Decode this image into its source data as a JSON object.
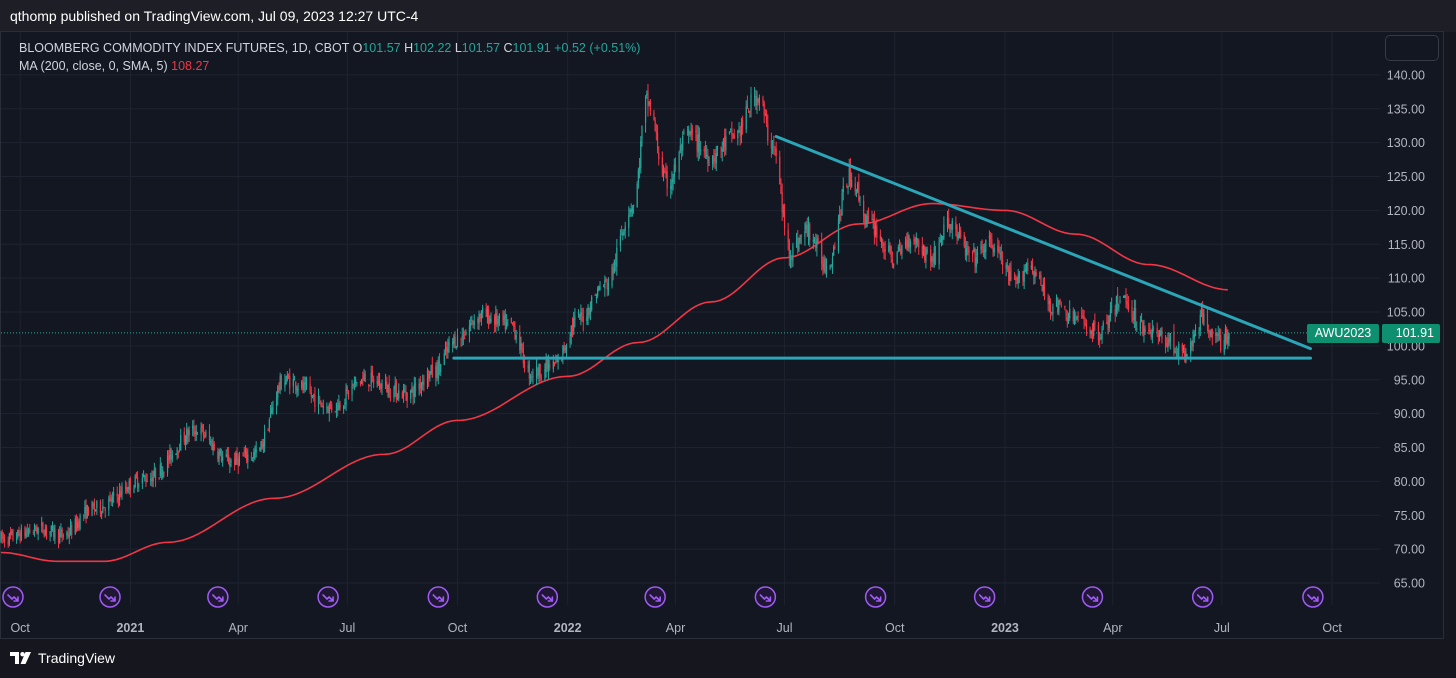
{
  "header": {
    "publisher_line": "qthomp published on TradingView.com, Jul 09, 2023 12:27 UTC-4"
  },
  "legend": {
    "symbol": "BLOOMBERG COMMODITY INDEX FUTURES, 1D, CBOT",
    "o_label": "O",
    "o_value": "101.57",
    "h_label": "H",
    "h_value": "102.22",
    "l_label": "L",
    "l_value": "101.57",
    "c_label": "C",
    "c_value": "101.91",
    "change": "+0.52 (+0.51%)",
    "ma_label": "MA (200, close, 0, SMA, 5)",
    "ma_value": "108.27"
  },
  "price_tag": {
    "symbol": "AWU2023",
    "price": "101.91"
  },
  "footer": {
    "brand": "TradingView"
  },
  "colors": {
    "up": "#26a69a",
    "down": "#f23645",
    "ma": "#f23645",
    "trendline": "#2aa6b8",
    "event_icon": "#a05bf5"
  },
  "icons": [
    "tradingview-logo-icon",
    "event-flag-icon"
  ],
  "chart_data": {
    "type": "candlestick",
    "title": "",
    "y_axis": {
      "ticks": [
        65,
        70,
        75,
        80,
        85,
        90,
        95,
        100,
        105,
        110,
        115,
        120,
        125,
        130,
        135,
        140
      ],
      "labels": [
        "65.00",
        "70.00",
        "75.00",
        "80.00",
        "85.00",
        "90.00",
        "95.00",
        "100.00",
        "105.00",
        "110.00",
        "115.00",
        "120.00",
        "125.00",
        "130.00",
        "135.00",
        "140.00"
      ],
      "side": "right"
    },
    "x_axis": {
      "start_date": "2020-09-15",
      "end_date": "2023-11-10",
      "ticks": [
        {
          "date": "2020-10-01",
          "label": "Oct",
          "bold": false
        },
        {
          "date": "2021-01-01",
          "label": "2021",
          "bold": true
        },
        {
          "date": "2021-04-01",
          "label": "Apr",
          "bold": false
        },
        {
          "date": "2021-07-01",
          "label": "Jul",
          "bold": false
        },
        {
          "date": "2021-10-01",
          "label": "Oct",
          "bold": false
        },
        {
          "date": "2022-01-01",
          "label": "2022",
          "bold": true
        },
        {
          "date": "2022-04-01",
          "label": "Apr",
          "bold": false
        },
        {
          "date": "2022-07-01",
          "label": "Jul",
          "bold": false
        },
        {
          "date": "2022-10-01",
          "label": "Oct",
          "bold": false
        },
        {
          "date": "2023-01-01",
          "label": "2023",
          "bold": true
        },
        {
          "date": "2023-04-01",
          "label": "Apr",
          "bold": false
        },
        {
          "date": "2023-07-01",
          "label": "Jul",
          "bold": false
        },
        {
          "date": "2023-10-01",
          "label": "Oct",
          "bold": false
        }
      ]
    },
    "grid": true,
    "price_anchors": [
      [
        "2020-09-15",
        71.5
      ],
      [
        "2020-10-20",
        73
      ],
      [
        "2020-11-05",
        72
      ],
      [
        "2020-12-01",
        76
      ],
      [
        "2021-01-15",
        80.5
      ],
      [
        "2021-02-25",
        87.5
      ],
      [
        "2021-03-25",
        83
      ],
      [
        "2021-04-15",
        84
      ],
      [
        "2021-05-10",
        95
      ],
      [
        "2021-06-18",
        91
      ],
      [
        "2021-07-15",
        95
      ],
      [
        "2021-08-20",
        93
      ],
      [
        "2021-09-10",
        96
      ],
      [
        "2021-10-01",
        101
      ],
      [
        "2021-10-20",
        104.5
      ],
      [
        "2021-11-15",
        103
      ],
      [
        "2021-12-01",
        96
      ],
      [
        "2021-12-20",
        97
      ],
      [
        "2022-01-10",
        104
      ],
      [
        "2022-02-01",
        109
      ],
      [
        "2022-02-25",
        121
      ],
      [
        "2022-03-08",
        136
      ],
      [
        "2022-03-25",
        124
      ],
      [
        "2022-04-12",
        131
      ],
      [
        "2022-05-01",
        128
      ],
      [
        "2022-05-20",
        131
      ],
      [
        "2022-06-09",
        137
      ],
      [
        "2022-06-20",
        130
      ],
      [
        "2022-07-06",
        114
      ],
      [
        "2022-07-20",
        117
      ],
      [
        "2022-08-05",
        112
      ],
      [
        "2022-08-25",
        125
      ],
      [
        "2022-09-10",
        118
      ],
      [
        "2022-09-30",
        113
      ],
      [
        "2022-10-15",
        116
      ],
      [
        "2022-11-01",
        113
      ],
      [
        "2022-11-15",
        118
      ],
      [
        "2022-12-05",
        113
      ],
      [
        "2022-12-20",
        115
      ],
      [
        "2023-01-10",
        109
      ],
      [
        "2023-01-20",
        112
      ],
      [
        "2023-02-10",
        106
      ],
      [
        "2023-03-01",
        104
      ],
      [
        "2023-03-20",
        102
      ],
      [
        "2023-04-10",
        107
      ],
      [
        "2023-04-25",
        103
      ],
      [
        "2023-05-15",
        101
      ],
      [
        "2023-05-31",
        98.5
      ],
      [
        "2023-06-15",
        104
      ],
      [
        "2023-06-30",
        100.5
      ],
      [
        "2023-07-07",
        101.91
      ]
    ],
    "ma_anchors": [
      [
        "2020-09-15",
        69.5
      ],
      [
        "2020-11-01",
        68.2
      ],
      [
        "2020-12-10",
        68.2
      ],
      [
        "2021-02-01",
        71
      ],
      [
        "2021-05-01",
        77.5
      ],
      [
        "2021-08-01",
        84
      ],
      [
        "2021-10-01",
        89
      ],
      [
        "2022-01-01",
        95.5
      ],
      [
        "2022-03-01",
        100.5
      ],
      [
        "2022-05-01",
        106.5
      ],
      [
        "2022-07-01",
        113
      ],
      [
        "2022-09-01",
        118
      ],
      [
        "2022-11-01",
        121
      ],
      [
        "2023-01-01",
        120
      ],
      [
        "2023-03-01",
        116.5
      ],
      [
        "2023-05-01",
        112
      ],
      [
        "2023-07-07",
        108.27
      ]
    ],
    "trendlines": [
      {
        "name": "descending-resistance",
        "from": [
          "2022-06-24",
          130.9
        ],
        "to": [
          "2023-09-13",
          99.6
        ]
      },
      {
        "name": "horizontal-support",
        "from": [
          "2021-09-28",
          98.2
        ],
        "to": [
          "2023-09-13",
          98.2
        ]
      }
    ],
    "last_price": 101.91,
    "event_markers": [
      "2020-09-15",
      "2020-12-15",
      "2021-03-15",
      "2021-06-15",
      "2021-09-15",
      "2021-12-15",
      "2022-03-15",
      "2022-06-15",
      "2022-09-15",
      "2022-12-15",
      "2023-03-15",
      "2023-06-15",
      "2023-09-15"
    ]
  }
}
